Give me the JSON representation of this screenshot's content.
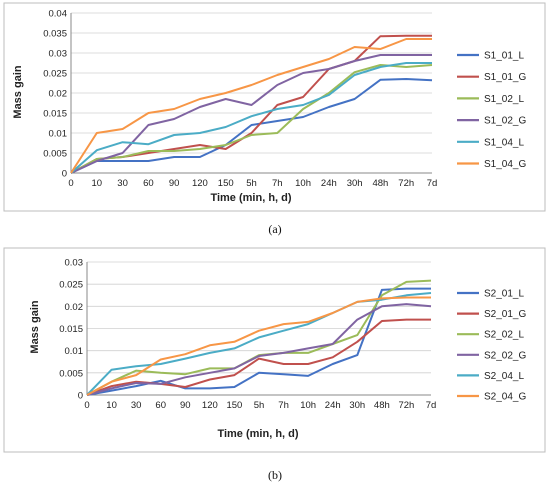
{
  "captions": [
    "(a)",
    "(b)"
  ],
  "chart_data": [
    {
      "type": "line",
      "xlabel": "Time (min, h, d)",
      "ylabel": "Mass gain",
      "ylim": [
        0,
        0.04
      ],
      "yticks": [
        "0",
        "0.005",
        "0.01",
        "0.015",
        "0.02",
        "0.025",
        "0.03",
        "0.035",
        "0.04"
      ],
      "categories": [
        "0",
        "10",
        "30",
        "60",
        "90",
        "120",
        "150",
        "5h",
        "7h",
        "10h",
        "24h",
        "30h",
        "48h",
        "72h",
        "7d"
      ],
      "grid": true,
      "legend": "right",
      "series": [
        {
          "name": "S1_01_L",
          "color": "#4472c4",
          "values": [
            0,
            0.003,
            0.003,
            0.003,
            0.004,
            0.004,
            0.007,
            0.012,
            0.013,
            0.014,
            0.0165,
            0.0185,
            0.0233,
            0.0235,
            0.0232
          ]
        },
        {
          "name": "S1_01_G",
          "color": "#c0504d",
          "values": [
            0,
            0.0035,
            0.004,
            0.005,
            0.006,
            0.007,
            0.006,
            0.01,
            0.017,
            0.019,
            0.026,
            0.028,
            0.0342,
            0.0343,
            0.0343
          ]
        },
        {
          "name": "S1_02_L",
          "color": "#9bbb59",
          "values": [
            0,
            0.0035,
            0.004,
            0.0055,
            0.0055,
            0.006,
            0.007,
            0.0095,
            0.01,
            0.016,
            0.02,
            0.0252,
            0.027,
            0.0265,
            0.027
          ]
        },
        {
          "name": "S1_02_G",
          "color": "#8064a2",
          "values": [
            0,
            0.003,
            0.005,
            0.012,
            0.0135,
            0.0165,
            0.0185,
            0.017,
            0.022,
            0.025,
            0.026,
            0.028,
            0.0295,
            0.0295,
            0.0295
          ]
        },
        {
          "name": "S1_04_L",
          "color": "#4bacc6",
          "values": [
            0,
            0.0057,
            0.0077,
            0.0072,
            0.0095,
            0.01,
            0.0115,
            0.0142,
            0.016,
            0.017,
            0.0195,
            0.0245,
            0.0265,
            0.0275,
            0.0275
          ]
        },
        {
          "name": "S1_04_G",
          "color": "#f79646",
          "values": [
            0,
            0.01,
            0.011,
            0.015,
            0.016,
            0.0185,
            0.02,
            0.022,
            0.0245,
            0.0265,
            0.0285,
            0.0315,
            0.031,
            0.0335,
            0.0335
          ]
        }
      ]
    },
    {
      "type": "line",
      "xlabel": "Time (min, h, d)",
      "ylabel": "Mass gain",
      "ylim": [
        0,
        0.03
      ],
      "yticks": [
        "0",
        "0.005",
        "0.01",
        "0.015",
        "0.02",
        "0.025",
        "0.03"
      ],
      "categories": [
        "0",
        "10",
        "30",
        "60",
        "90",
        "120",
        "150",
        "5h",
        "7h",
        "10h",
        "24h",
        "30h",
        "48h",
        "72h",
        "7d"
      ],
      "grid": true,
      "legend": "right",
      "series": [
        {
          "name": "S2_01_L",
          "color": "#4472c4",
          "values": [
            0,
            0.001,
            0.002,
            0.0032,
            0.0015,
            0.0015,
            0.0018,
            0.005,
            0.0047,
            0.0043,
            0.007,
            0.009,
            0.0237,
            0.024,
            0.024
          ]
        },
        {
          "name": "S2_01_G",
          "color": "#c0504d",
          "values": [
            0,
            0.002,
            0.003,
            0.0025,
            0.0018,
            0.0035,
            0.0045,
            0.0082,
            0.007,
            0.007,
            0.0085,
            0.012,
            0.0167,
            0.017,
            0.017
          ]
        },
        {
          "name": "S2_02_L",
          "color": "#9bbb59",
          "values": [
            0,
            0.003,
            0.0055,
            0.005,
            0.0047,
            0.006,
            0.006,
            0.009,
            0.0095,
            0.0095,
            0.0115,
            0.0135,
            0.0225,
            0.0255,
            0.0258
          ]
        },
        {
          "name": "S2_02_G",
          "color": "#8064a2",
          "values": [
            0,
            0.0015,
            0.0027,
            0.0025,
            0.004,
            0.005,
            0.006,
            0.0088,
            0.0095,
            0.0105,
            0.0115,
            0.017,
            0.02,
            0.0205,
            0.02
          ]
        },
        {
          "name": "S2_04_L",
          "color": "#4bacc6",
          "values": [
            0,
            0.0057,
            0.0065,
            0.007,
            0.0082,
            0.0095,
            0.0105,
            0.013,
            0.0145,
            0.016,
            0.0185,
            0.021,
            0.0215,
            0.0225,
            0.023
          ]
        },
        {
          "name": "S2_04_G",
          "color": "#f79646",
          "values": [
            0,
            0.003,
            0.0045,
            0.008,
            0.0092,
            0.0112,
            0.012,
            0.0145,
            0.016,
            0.0165,
            0.0185,
            0.021,
            0.0218,
            0.022,
            0.022
          ]
        }
      ]
    }
  ]
}
